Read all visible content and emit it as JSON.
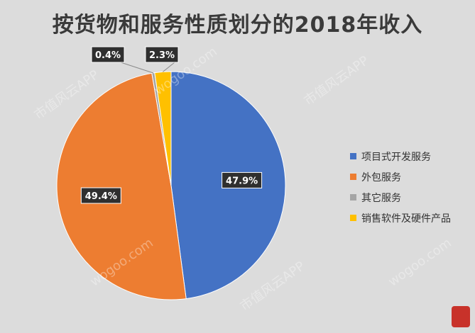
{
  "chart_data": {
    "type": "pie",
    "title": "按货物和服务性质划分的2018年收入",
    "categories": [
      "项目式开发服务",
      "外包服务",
      "其它服务",
      "销售软件及硬件产品"
    ],
    "values": [
      47.9,
      49.4,
      0.4,
      2.3
    ],
    "labels": [
      "47.9%",
      "49.4%",
      "0.4%",
      "2.3%"
    ],
    "colors": [
      "#4472C4",
      "#ED7D31",
      "#A5A5A5",
      "#FFC000"
    ],
    "legend_position": "right"
  },
  "watermark": {
    "texts": [
      "市值风云APP",
      "wogoo.com"
    ]
  }
}
